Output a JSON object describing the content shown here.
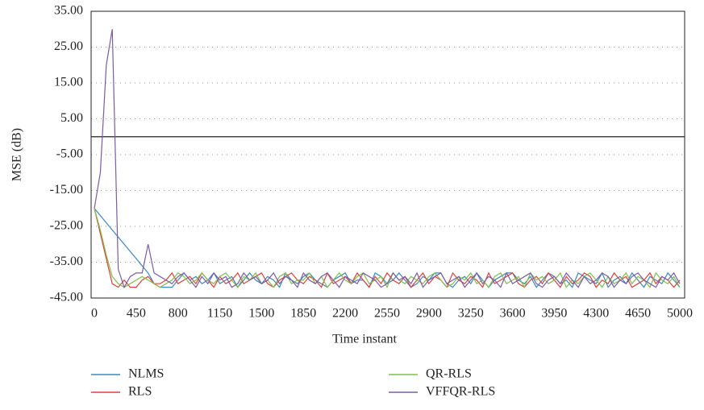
{
  "chart_data": {
    "type": "line",
    "x_label": "Time instant",
    "y_label": "MSE (dB)",
    "categories": [
      "0",
      null,
      null,
      null,
      null,
      null,
      null,
      "450",
      null,
      null,
      null,
      null,
      null,
      null,
      "800",
      null,
      null,
      null,
      null,
      null,
      null,
      "1150",
      null,
      null,
      null,
      null,
      null,
      null,
      "1500",
      null,
      null,
      null,
      null,
      null,
      null,
      "1850",
      null,
      null,
      null,
      null,
      null,
      null,
      "2200",
      null,
      null,
      null,
      null,
      null,
      null,
      "2550",
      null,
      null,
      null,
      null,
      null,
      null,
      "2900",
      null,
      null,
      null,
      null,
      null,
      null,
      "3250",
      null,
      null,
      null,
      null,
      null,
      null,
      "3600",
      null,
      null,
      null,
      null,
      null,
      null,
      "3950",
      null,
      null,
      null,
      null,
      null,
      null,
      "4300",
      null,
      null,
      null,
      null,
      null,
      null,
      "4650",
      null,
      null,
      null,
      null,
      null,
      null,
      "5000"
    ],
    "ylim": [
      -45,
      35
    ],
    "yticks": [
      {
        "value": -45,
        "label": "-45.00"
      },
      {
        "value": -35,
        "label": "-35.00"
      },
      {
        "value": -25,
        "label": "-25.00"
      },
      {
        "value": -15,
        "label": "-15.00"
      },
      {
        "value": -5,
        "label": "-5.00"
      },
      {
        "value": 5,
        "label": "5.00"
      },
      {
        "value": 15,
        "label": "15.00"
      },
      {
        "value": 25,
        "label": "25.00"
      },
      {
        "value": 35,
        "label": "35.00"
      }
    ],
    "grid": true,
    "legend": "bottom",
    "series": [
      {
        "name": "NLMS",
        "color": "#3a87c4",
        "values": [
          -20,
          -22,
          -24,
          -26,
          -28,
          -30,
          -32,
          -34,
          -36,
          -38,
          -41,
          -42,
          -42,
          -42,
          -40,
          -38,
          -40,
          -39,
          -41,
          -40,
          -38,
          -41,
          -40,
          -39,
          -42,
          -40,
          -38,
          -40,
          -41,
          -39,
          -40,
          -42,
          -38,
          -40,
          -41,
          -39,
          -38,
          -40,
          -41,
          -42,
          -40,
          -39,
          -38,
          -41,
          -40,
          -40,
          -42,
          -38,
          -39,
          -41,
          -40,
          -38,
          -40,
          -42,
          -41,
          -39,
          -40,
          -38,
          -38,
          -41,
          -42,
          -40,
          -39,
          -41,
          -38,
          -40,
          -42,
          -40,
          -39,
          -38,
          -38,
          -40,
          -41,
          -39,
          -42,
          -40,
          -38,
          -39,
          -41,
          -40,
          -42,
          -38,
          -39,
          -40,
          -41,
          -38,
          -42,
          -40,
          -39,
          -41,
          -38,
          -40,
          -42,
          -39,
          -40,
          -41,
          -38,
          -40,
          -42
        ]
      },
      {
        "name": "RLS",
        "color": "#e0403a",
        "values": [
          -20,
          -27,
          -34,
          -41,
          -42,
          -40,
          -42,
          -42,
          -40,
          -39,
          -41,
          -41,
          -40,
          -38,
          -41,
          -40,
          -39,
          -41,
          -38,
          -40,
          -42,
          -39,
          -41,
          -40,
          -38,
          -41,
          -40,
          -39,
          -38,
          -41,
          -42,
          -40,
          -39,
          -38,
          -40,
          -41,
          -39,
          -40,
          -42,
          -38,
          -41,
          -40,
          -39,
          -41,
          -38,
          -40,
          -42,
          -39,
          -41,
          -38,
          -40,
          -41,
          -39,
          -42,
          -40,
          -38,
          -41,
          -39,
          -40,
          -42,
          -38,
          -40,
          -41,
          -39,
          -40,
          -42,
          -38,
          -41,
          -40,
          -39,
          -38,
          -41,
          -42,
          -40,
          -39,
          -41,
          -38,
          -40,
          -42,
          -39,
          -41,
          -40,
          -38,
          -39,
          -42,
          -40,
          -41,
          -38,
          -40,
          -39,
          -42,
          -41,
          -40,
          -38,
          -41,
          -39,
          -40,
          -42,
          -40
        ]
      },
      {
        "name": "QR-RLS",
        "color": "#7fbf4a",
        "values": [
          -20,
          -26,
          -33,
          -39,
          -41,
          -42,
          -41,
          -40,
          -39,
          -40,
          -41,
          -42,
          -41,
          -40,
          -38,
          -39,
          -41,
          -40,
          -38,
          -40,
          -41,
          -39,
          -38,
          -40,
          -42,
          -39,
          -40,
          -38,
          -41,
          -40,
          -42,
          -39,
          -38,
          -41,
          -40,
          -40,
          -38,
          -41,
          -39,
          -42,
          -40,
          -38,
          -40,
          -41,
          -39,
          -38,
          -41,
          -40,
          -39,
          -42,
          -38,
          -40,
          -41,
          -39,
          -40,
          -41,
          -39,
          -38,
          -40,
          -42,
          -41,
          -39,
          -40,
          -38,
          -41,
          -40,
          -42,
          -39,
          -38,
          -41,
          -40,
          -39,
          -42,
          -38,
          -40,
          -39,
          -41,
          -40,
          -38,
          -42,
          -40,
          -41,
          -39,
          -38,
          -40,
          -42,
          -39,
          -41,
          -40,
          -38,
          -41,
          -39,
          -40,
          -42,
          -38,
          -40,
          -41,
          -39,
          -42
        ]
      },
      {
        "name": "VFFQR-RLS",
        "color": "#7d5ba6",
        "values": [
          -20,
          -10,
          20,
          30,
          -37,
          -42,
          -39,
          -38,
          -38,
          -30,
          -38,
          -39,
          -40,
          -41,
          -39,
          -38,
          -40,
          -42,
          -39,
          -41,
          -38,
          -40,
          -39,
          -42,
          -41,
          -38,
          -40,
          -39,
          -41,
          -40,
          -38,
          -41,
          -39,
          -40,
          -42,
          -38,
          -40,
          -41,
          -39,
          -38,
          -40,
          -42,
          -39,
          -40,
          -41,
          -38,
          -39,
          -40,
          -42,
          -41,
          -38,
          -40,
          -39,
          -41,
          -38,
          -42,
          -40,
          -39,
          -38,
          -41,
          -40,
          -39,
          -42,
          -40,
          -38,
          -41,
          -39,
          -40,
          -42,
          -38,
          -41,
          -40,
          -39,
          -38,
          -41,
          -42,
          -40,
          -39,
          -41,
          -38,
          -40,
          -42,
          -39,
          -41,
          -40,
          -38,
          -39,
          -42,
          -40,
          -41,
          -39,
          -38,
          -40,
          -41,
          -42,
          -39,
          -40,
          -38,
          -41
        ]
      }
    ]
  }
}
